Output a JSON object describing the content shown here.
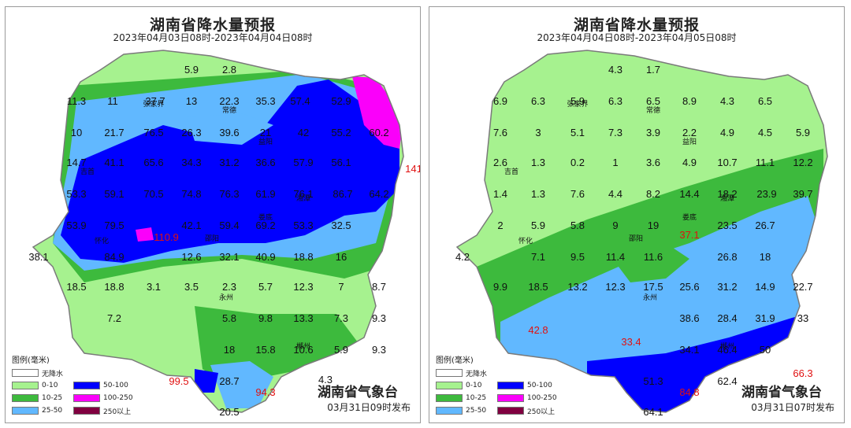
{
  "colors": {
    "none": "#ffffff",
    "c0_10": "#a6f28f",
    "c10_25": "#3dba3d",
    "c25_50": "#61b8ff",
    "c50_100": "#0000ff",
    "c100_250": "#fa00fa",
    "c250_plus": "#800040",
    "boundary": "#7a7a7a",
    "highlight_value": "#e01010"
  },
  "legend": {
    "title": "图例(毫米)",
    "items": [
      {
        "label": "无降水",
        "color_key": "none"
      },
      {
        "label": "0-10",
        "color_key": "c0_10"
      },
      {
        "label": "50-100",
        "color_key": "c50_100"
      },
      {
        "label": "10-25",
        "color_key": "c10_25"
      },
      {
        "label": "100-250",
        "color_key": "c100_250"
      },
      {
        "label": "25-50",
        "color_key": "c25_50"
      },
      {
        "label": "250以上",
        "color_key": "c250_plus"
      }
    ]
  },
  "maps": [
    {
      "title": "湖南省降水量预报",
      "period": "2023年04月03日08时-2023年04月04日08时",
      "publisher": "湖南省气象台",
      "issued": "03月31日09时发布",
      "cities": [
        "张家界",
        "常德",
        "益阳",
        "湘潭",
        "娄底",
        "邵阳",
        "永州",
        "郴州",
        "吉首",
        "怀化"
      ],
      "values": [
        "5.9",
        "2.8",
        "11.3",
        "11",
        "37.7",
        "13",
        "22.3",
        "35.3",
        "57.4",
        "52.9",
        "10",
        "21.7",
        "76.5",
        "26.3",
        "39.6",
        "21",
        "42",
        "55.2",
        "60.2",
        "14.7",
        "41.1",
        "65.6",
        "34.3",
        "31.2",
        "36.6",
        "57.9",
        "56.1",
        "141",
        "53.3",
        "59.1",
        "70.5",
        "74.8",
        "76.3",
        "61.9",
        "76.1",
        "86.7",
        "64.2",
        "53.9",
        "79.5",
        "110.9",
        "42.1",
        "59.4",
        "69.2",
        "53.3",
        "32.5",
        "38.1",
        "84.9",
        "12.6",
        "32.1",
        "40.9",
        "18.8",
        "16",
        "18.5",
        "18.8",
        "3.1",
        "3.5",
        "2.3",
        "5.7",
        "12.3",
        "7",
        "8.7",
        "7.2",
        "5.8",
        "9.8",
        "13.3",
        "7.3",
        "9.3",
        "18",
        "15.8",
        "10.6",
        "5.9",
        "9.3",
        "99.5",
        "28.7",
        "94.3",
        "4.3",
        "20.5"
      ],
      "red_values": [
        "141",
        "110.9",
        "99.5",
        "94.3"
      ]
    },
    {
      "title": "湖南省降水量预报",
      "period": "2023年04月04日08时-2023年04月05日08时",
      "publisher": "湖南省气象台",
      "issued": "03月31日07时发布",
      "cities": [
        "张家界",
        "常德",
        "益阳",
        "湘潭",
        "娄底",
        "邵阳",
        "永州",
        "郴州",
        "吉首",
        "怀化"
      ],
      "values": [
        "4.3",
        "1.7",
        "6.9",
        "6.3",
        "5.9",
        "6.3",
        "6.5",
        "8.9",
        "4.3",
        "6.5",
        "7.6",
        "3",
        "5.1",
        "7.3",
        "3.9",
        "2.2",
        "4.9",
        "4.5",
        "5.9",
        "2.6",
        "1.3",
        "0.2",
        "1",
        "3.6",
        "4.9",
        "10.7",
        "11.1",
        "12.2",
        "1.4",
        "1.3",
        "7.6",
        "4.4",
        "8.2",
        "14.4",
        "18.2",
        "23.9",
        "39.7",
        "2",
        "5.9",
        "5.8",
        "9",
        "19",
        "37.1",
        "23.5",
        "26.7",
        "4.2",
        "7.1",
        "9.5",
        "11.4",
        "11.6",
        "26.8",
        "18",
        "9.9",
        "18.5",
        "13.2",
        "12.3",
        "17.5",
        "25.6",
        "31.2",
        "14.9",
        "22.7",
        "42.8",
        "38.6",
        "28.4",
        "31.9",
        "33",
        "33.4",
        "34.1",
        "46.4",
        "50",
        "51.3",
        "62.4",
        "66.3",
        "84.8",
        "64.1"
      ],
      "red_values": [
        "37.1",
        "42.8",
        "33.4",
        "66.3",
        "84.8"
      ]
    }
  ]
}
